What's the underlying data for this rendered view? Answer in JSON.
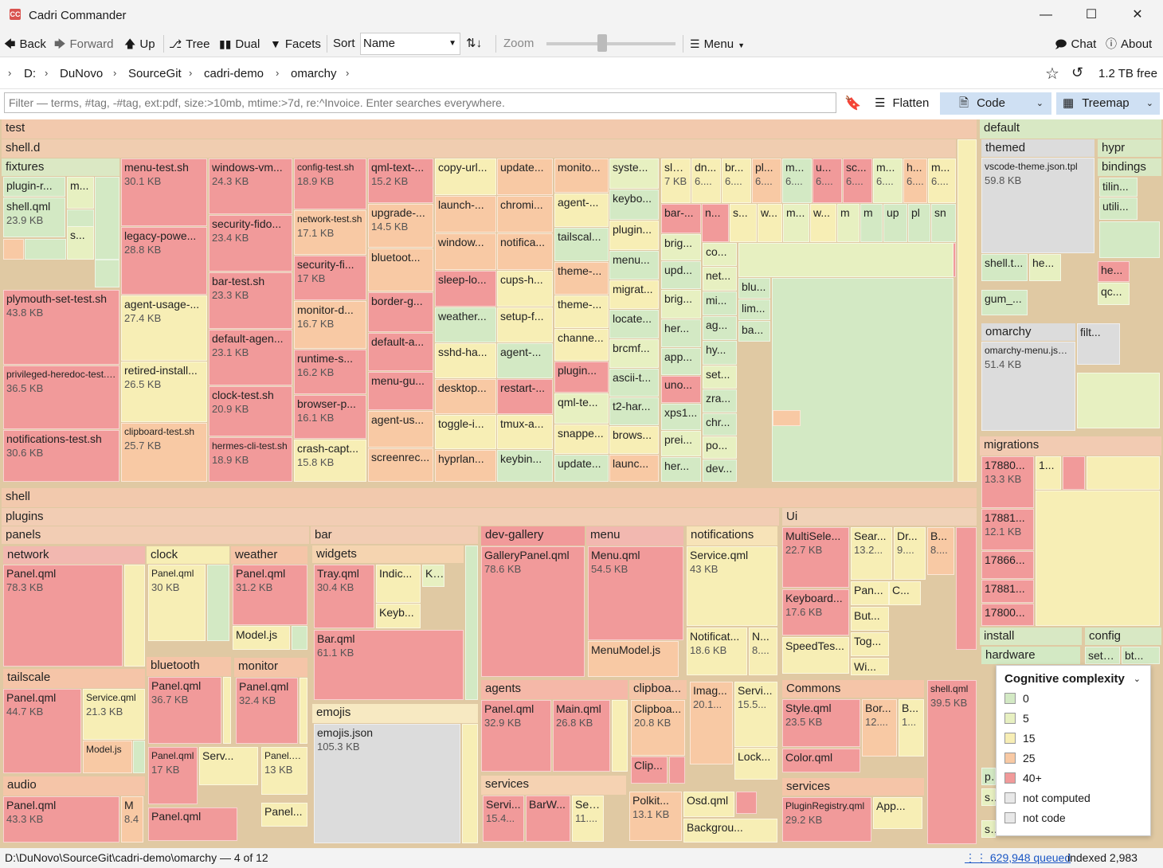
{
  "window": {
    "title": "Cadri Commander",
    "app_icon": "CC"
  },
  "toolbar": {
    "back": "Back",
    "forward": "Forward",
    "up": "Up",
    "tree": "Tree",
    "dual": "Dual",
    "facets": "Facets",
    "sort_label": "Sort",
    "sort_value": "Name",
    "zoom_label": "Zoom",
    "menu": "Menu",
    "chat": "Chat",
    "about": "About"
  },
  "breadcrumb": {
    "items": [
      "D:",
      "DuNovo",
      "SourceGit",
      "cadri-demo",
      "omarchy"
    ],
    "free": "1.2 TB free"
  },
  "filter": {
    "placeholder": "Filter — terms, #tag, -#tag, ext:pdf, size:>10mb, mtime:>7d, re:^Invoice. Enter searches everywhere.",
    "flatten": "Flatten",
    "view": "Code",
    "layout": "Treemap"
  },
  "legend": {
    "title": "Cognitive complexity",
    "items": [
      "0",
      "5",
      "15",
      "25",
      "40+",
      "not computed",
      "not code"
    ],
    "colors": [
      "#d3e9c4",
      "#e7f0c1",
      "#f7eeb5",
      "#f8c9a4",
      "#f19a9a",
      "#dcdcdc",
      "#dcdcdc"
    ]
  },
  "status": {
    "path": "D:\\DuNovo\\SourceGit\\cadri-demo\\omarchy — 4 of 12",
    "queued": "629,948 queued",
    "indexed": "indexed 2,983"
  },
  "tm": {
    "test": "test",
    "shelld": "shell.d",
    "fixtures": "fixtures",
    "pluginr": "plugin-r...",
    "m1": "m...",
    "shellqml": "shell.qml",
    "shellqml_sz": "23.9 KB",
    "s1": "s...",
    "menutest": "menu-test.sh",
    "menutest_sz": "30.1 KB",
    "legacy": "legacy-powe...",
    "legacy_sz": "28.8 KB",
    "winvm": "windows-vm...",
    "winvm_sz": "24.3 KB",
    "secfido": "security-fido...",
    "secfido_sz": "23.4 KB",
    "bartest": "bar-test.sh",
    "bartest_sz": "23.3 KB",
    "defagen": "default-agen...",
    "defagen_sz": "23.1 KB",
    "clocktest": "clock-test.sh",
    "clocktest_sz": "20.9 KB",
    "hermes": "hermes-cli-test.sh",
    "hermes_sz": "18.9 KB",
    "configtest": "config-test.sh",
    "configtest_sz": "18.9 KB",
    "nettest": "network-test.sh",
    "nettest_sz": "17.1 KB",
    "secfi": "security-fi...",
    "secfi_sz": "17 KB",
    "monitord": "monitor-d...",
    "monitord_sz": "16.7 KB",
    "runtime": "runtime-s...",
    "runtime_sz": "16.2 KB",
    "browserp": "browser-p...",
    "browserp_sz": "16.1 KB",
    "crash": "crash-capt...",
    "crash_sz": "15.8 KB",
    "qmltext": "qml-text-...",
    "qmltext_sz": "15.2 KB",
    "upgrade": "upgrade-...",
    "upgrade_sz": "14.5 KB",
    "bluetoot": "bluetoot...",
    "borderg": "border-g...",
    "defaulta": "default-a...",
    "menugu": "menu-gu...",
    "agentus": "agent-us...",
    "screenrec": "screenrec...",
    "plymouth": "plymouth-set-test.sh",
    "plymouth_sz": "43.8 KB",
    "agentusage": "agent-usage-...",
    "agentusage_sz": "27.4 KB",
    "privileged": "privileged-heredoc-test.sh",
    "privileged_sz": "36.5 KB",
    "retired": "retired-install...",
    "retired_sz": "26.5 KB",
    "notif": "notifications-test.sh",
    "notif_sz": "30.6 KB",
    "clipboard": "clipboard-test.sh",
    "clipboard_sz": "25.7 KB",
    "col_a": [
      "copy-url...",
      "launch-...",
      "window...",
      "sleep-lo...",
      "weather...",
      "sshd-ha...",
      "desktop...",
      "toggle-i...",
      "hyprlan..."
    ],
    "col_b": [
      "update...",
      "chromi...",
      "notifica...",
      "cups-h...",
      "setup-f...",
      "agent-...",
      "restart-...",
      "tmux-a...",
      "keybin..."
    ],
    "col_c": [
      "monito...",
      "agent-...",
      "tailscal...",
      "theme-...",
      "theme-...",
      "channe...",
      "plugin...",
      "qml-te...",
      "snappe...",
      "update..."
    ],
    "col_d": [
      "syste...",
      "keybo...",
      "plugin...",
      "menu...",
      "migrat...",
      "locate...",
      "brcmf...",
      "ascii-t...",
      "t2-har...",
      "brows...",
      "launc..."
    ],
    "col_e": [
      "brig...",
      "upd...",
      "brig...",
      "her...",
      "app...",
      "uno...",
      "xps1...",
      "prei...",
      "her..."
    ],
    "col_f": [
      "co...",
      "net...",
      "mi...",
      "ag...",
      "hy...",
      "set...",
      "zra...",
      "chr...",
      "po...",
      "dev..."
    ],
    "col_g": [
      "blu...",
      "lim...",
      "ba..."
    ],
    "topsmall": [
      "sle...",
      "dn...",
      "br...",
      "pl...",
      "m...",
      "u...",
      "sc...",
      "m...",
      "h...",
      "m..."
    ],
    "topsmall_sz": [
      "7 KB",
      "6....",
      "6....",
      "6....",
      "6....",
      "6....",
      "6....",
      "6....",
      "6....",
      "6...."
    ],
    "row2": [
      "bar-...",
      "n...",
      "s...",
      "w...",
      "m...",
      "w...",
      "m",
      "m",
      "up",
      "pl",
      "sn"
    ],
    "default": "default",
    "themed": "themed",
    "vscode": "vscode-theme.json.tpl",
    "vscode_sz": "59.8 KB",
    "hypr": "hypr",
    "bindings": "bindings",
    "tilin": "tilin...",
    "utili": "utili...",
    "shellt": "shell.t...",
    "he1": "he...",
    "he2": "he...",
    "qc": "qc...",
    "gum": "gum_...",
    "omarchy": "omarchy",
    "omarchymenu": "omarchy-menu.jsonc",
    "omarchymenu_sz": "51.4 KB",
    "filt": "filt...",
    "migrations": "migrations",
    "mig1": "17880...",
    "mig1_sz": "13.3 KB",
    "mig1b": "1...",
    "mig2": "17881...",
    "mig2_sz": "12.1 KB",
    "mig3": "17866...",
    "mig4": "17881...",
    "mig5": "17800...",
    "install": "install",
    "config": "config",
    "hardware": "hardware",
    "setti": "setti...",
    "bt": "bt...",
    "pl": "pl",
    "se1": "se",
    "se2": "se",
    "shell": "shell",
    "plugins": "plugins",
    "panels": "panels",
    "network": "network",
    "net_panel": "Panel.qml",
    "net_panel_sz": "78.3 KB",
    "clock": "clock",
    "clock_panel": "Panel.qml",
    "clock_panel_sz": "30 KB",
    "weather": "weather",
    "weather_panel": "Panel.qml",
    "weather_panel_sz": "31.2 KB",
    "weather_model": "Model.js",
    "tailscale": "tailscale",
    "ts_panel": "Panel.qml",
    "ts_panel_sz": "44.7 KB",
    "ts_service": "Service.qml",
    "ts_service_sz": "21.3 KB",
    "ts_model": "Model.js",
    "bluetooth": "bluetooth",
    "bt_panel": "Panel.qml",
    "bt_panel_sz": "36.7 KB",
    "monitor": "monitor",
    "mon_panel": "Panel.qml",
    "mon_panel_sz": "32.4 KB",
    "audio": "audio",
    "audio_panel": "Panel.qml",
    "audio_panel_sz": "43.3 KB",
    "audio_m": "M",
    "audio_m_sz": "8.4",
    "p17": "Panel.qml",
    "p17_sz": "17 KB",
    "serv": "Serv...",
    "p13": "Panel.qml",
    "p13_sz": "13 KB",
    "panelq": "Panel.qml",
    "panel_dots": "Panel...",
    "bar": "bar",
    "widgets": "widgets",
    "tray": "Tray.qml",
    "tray_sz": "30.4 KB",
    "indic": "Indic...",
    "k": "K...",
    "keyb": "Keyb...",
    "barqml": "Bar.qml",
    "barqml_sz": "61.1 KB",
    "emojis": "emojis",
    "emojisjson": "emojis.json",
    "emojisjson_sz": "105.3 KB",
    "devgallery": "dev-gallery",
    "gallery": "GalleryPanel.qml",
    "gallery_sz": "78.6 KB",
    "menu": "menu",
    "menuqml": "Menu.qml",
    "menuqml_sz": "54.5 KB",
    "menumodel": "MenuModel.js",
    "notifications": "notifications",
    "notifservice": "Service.qml",
    "notifservice_sz": "43 KB",
    "notificat": "Notificat...",
    "notificat_sz": "18.6 KB",
    "nn": "N...",
    "nn_sz": "8....",
    "agents": "agents",
    "ag_panel": "Panel.qml",
    "ag_panel_sz": "32.9 KB",
    "ag_main": "Main.qml",
    "ag_main_sz": "26.8 KB",
    "clipboa": "clipboa...",
    "clipboa2": "Clipboa...",
    "clipboa2_sz": "20.8 KB",
    "clip": "Clip...",
    "imag": "Imag...",
    "imag_sz": "20.1...",
    "servi": "Servi...",
    "servi_sz": "15.5...",
    "lock": "Lock...",
    "services": "services",
    "sv_servi": "Servi...",
    "sv_servi_sz": "15.4...",
    "barw": "BarW...",
    "ser": "Ser...",
    "ser_sz": "11....",
    "polkit": "Polkit...",
    "polkit_sz": "13.1 KB",
    "osd": "Osd.qml",
    "backgrou": "Backgrou...",
    "ui": "Ui",
    "multisele": "MultiSele...",
    "multisele_sz": "22.7 KB",
    "sear": "Sear...",
    "sear_sz": "13.2...",
    "dr": "Dr...",
    "dr_sz": "9....",
    "b1": "B...",
    "b1_sz": "8....",
    "pan": "Pan...",
    "c": "C...",
    "but": "But...",
    "tog": "Tog...",
    "wi": "Wi...",
    "keyboard": "Keyboard...",
    "keyboard_sz": "17.6 KB",
    "speedtes": "SpeedTes...",
    "commons": "Commons",
    "style": "Style.qml",
    "style_sz": "23.5 KB",
    "bor": "Bor...",
    "bor_sz": "12....",
    "b2": "B...",
    "b2_sz": "1...",
    "color": "Color.qml",
    "ui_services": "services",
    "pluginreg": "PluginRegistry.qml",
    "pluginreg_sz": "29.2 KB",
    "app": "App...",
    "shellqml2": "shell.qml",
    "shellqml2_sz": "39.5 KB"
  }
}
